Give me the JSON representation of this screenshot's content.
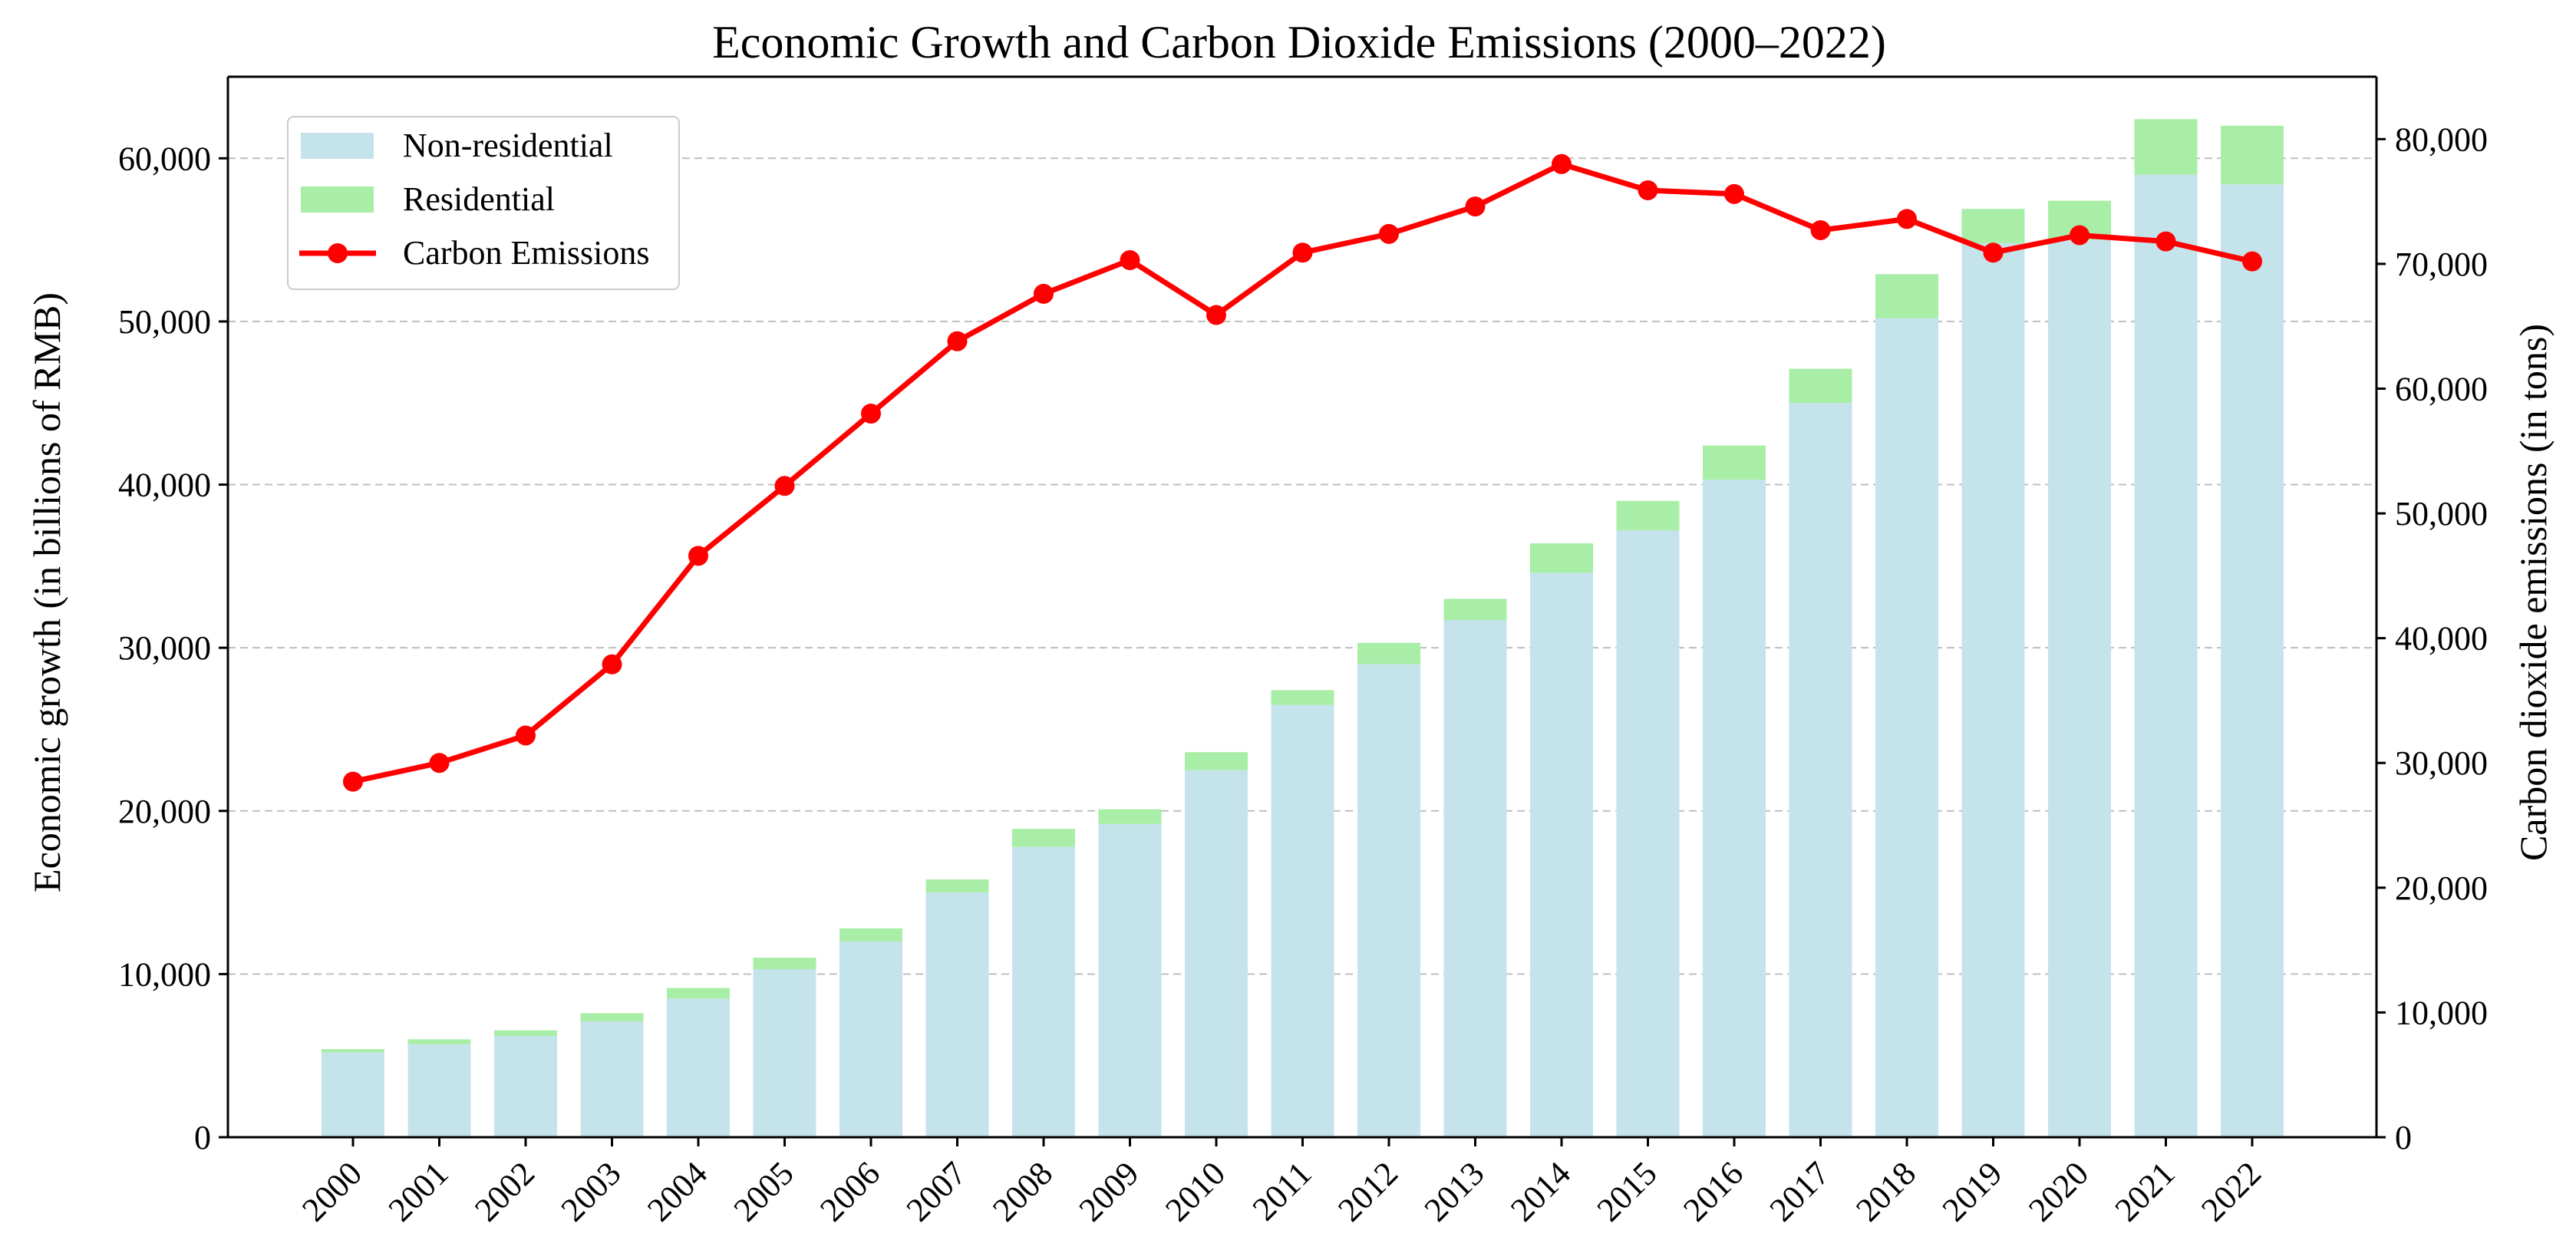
{
  "chart_data": {
    "type": "bar",
    "title": "Economic Growth and Carbon Dioxide Emissions (2000–2022)",
    "xlabel": "",
    "categories": [
      "2000",
      "2001",
      "2002",
      "2003",
      "2004",
      "2005",
      "2006",
      "2007",
      "2008",
      "2009",
      "2010",
      "2011",
      "2012",
      "2013",
      "2014",
      "2015",
      "2016",
      "2017",
      "2018",
      "2019",
      "2020",
      "2021",
      "2022"
    ],
    "stacked": true,
    "y_left": {
      "label": "Economic growth (in billions of RMB)",
      "ylim": [
        0,
        65000
      ],
      "ticks": [
        0,
        10000,
        20000,
        30000,
        40000,
        50000,
        60000
      ],
      "tick_labels": [
        "0",
        "10,000",
        "20,000",
        "30,000",
        "40,000",
        "50,000",
        "60,000"
      ]
    },
    "y_right": {
      "label": "Carbon dioxide emissions (in tons)",
      "ylim": [
        0,
        85000
      ],
      "ticks": [
        0,
        10000,
        20000,
        30000,
        40000,
        50000,
        60000,
        70000,
        80000
      ],
      "tick_labels": [
        "0",
        "10,000",
        "20,000",
        "30,000",
        "40,000",
        "50,000",
        "60,000",
        "70,000",
        "80,000"
      ]
    },
    "series": [
      {
        "name": "Non-residential",
        "kind": "bar",
        "axis": "left",
        "color": "#c5e3eb",
        "values": [
          5200,
          5700,
          6200,
          7100,
          8500,
          10300,
          12000,
          15000,
          17800,
          19200,
          22500,
          26500,
          29000,
          31700,
          34600,
          37200,
          40300,
          45000,
          50200,
          54800,
          55000,
          59000,
          58400
        ]
      },
      {
        "name": "Residential",
        "kind": "bar",
        "axis": "left",
        "color": "#a8eea6",
        "values": [
          200,
          300,
          350,
          500,
          650,
          700,
          800,
          800,
          1100,
          900,
          1100,
          900,
          1300,
          1300,
          1800,
          1800,
          2100,
          2100,
          2700,
          2100,
          2400,
          3400,
          3600
        ]
      },
      {
        "name": "Carbon Emissions",
        "kind": "line",
        "axis": "right",
        "color": "#ff0000",
        "values": [
          28500,
          30000,
          32200,
          37900,
          46600,
          52200,
          58000,
          63800,
          67600,
          70300,
          65900,
          70900,
          72400,
          74600,
          78000,
          75900,
          75600,
          72700,
          73600,
          70900,
          72300,
          71800,
          70200
        ]
      }
    ],
    "grid": {
      "y": true,
      "style": "dashed"
    },
    "legend_position": "top-left"
  }
}
